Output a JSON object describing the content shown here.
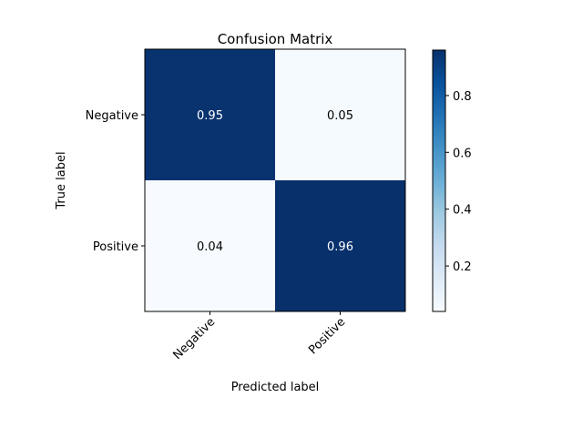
{
  "chart_data": {
    "type": "heatmap",
    "title": "Confusion Matrix",
    "xlabel": "Predicted label",
    "ylabel": "True label",
    "x_categories": [
      "Negative",
      "Positive"
    ],
    "y_categories": [
      "Negative",
      "Positive"
    ],
    "values": [
      [
        0.95,
        0.05
      ],
      [
        0.04,
        0.96
      ]
    ],
    "cell_labels": [
      [
        "0.95",
        "0.05"
      ],
      [
        "0.04",
        "0.96"
      ]
    ],
    "colormap": "Blues",
    "colormap_low": "#f7fbff",
    "colormap_high": "#08306b",
    "colorbar": {
      "range": [
        0.04,
        0.96
      ],
      "ticks": [
        0.2,
        0.4,
        0.6,
        0.8
      ],
      "tick_labels": [
        "0.2",
        "0.4",
        "0.6",
        "0.8"
      ]
    },
    "cell_text_color_dark": "#ffffff",
    "cell_text_color_light": "#000000"
  }
}
